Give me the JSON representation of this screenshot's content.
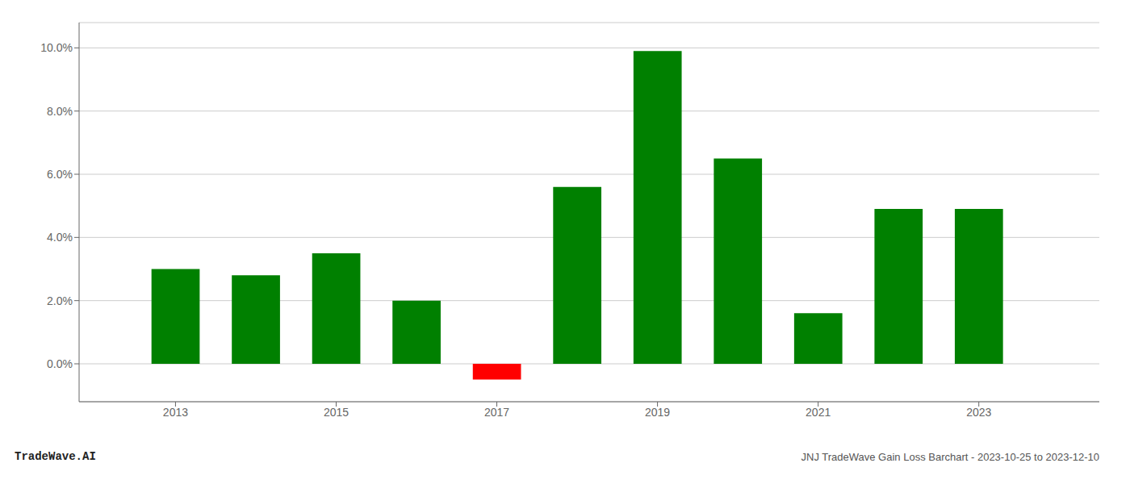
{
  "chart_data": {
    "type": "bar",
    "title": "JNJ TradeWave Gain Loss Barchart - 2023-10-25 to 2023-12-10",
    "annotations": [
      "TradeWave.AI"
    ],
    "x": [
      2013,
      2014,
      2015,
      2016,
      2017,
      2018,
      2019,
      2020,
      2021,
      2022,
      2023
    ],
    "values": [
      0.03,
      0.028,
      0.035,
      0.02,
      -0.005,
      0.056,
      0.099,
      0.065,
      0.016,
      0.049,
      0.049
    ],
    "colors": [
      "#008000",
      "#008000",
      "#008000",
      "#008000",
      "#ff0000",
      "#008000",
      "#008000",
      "#008000",
      "#008000",
      "#008000",
      "#008000"
    ],
    "xlim": [
      2011.8,
      2024.5
    ],
    "xticks": [
      2013,
      2015,
      2017,
      2019,
      2021,
      2023
    ],
    "ylim": [
      -0.012,
      0.108
    ],
    "yticks": [
      {
        "value": 0.0,
        "label": "0.0%"
      },
      {
        "value": 0.02,
        "label": "2.0%"
      },
      {
        "value": 0.04,
        "label": "4.0%"
      },
      {
        "value": 0.06,
        "label": "6.0%"
      },
      {
        "value": 0.08,
        "label": "8.0%"
      },
      {
        "value": 0.1,
        "label": "10.0%"
      }
    ],
    "grid": true
  }
}
